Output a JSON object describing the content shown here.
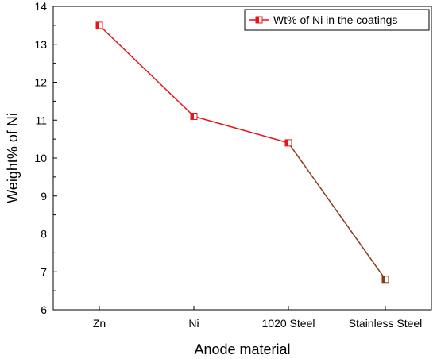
{
  "chart_data": {
    "type": "line",
    "title": "",
    "xlabel": "Anode material",
    "ylabel": "Weight% of Ni",
    "categories": [
      "Zn",
      "Ni",
      "1020 Steel",
      "Stainless Steel"
    ],
    "series": [
      {
        "name": "Wt% of Ni in the coatings",
        "values": [
          13.5,
          11.1,
          10.4,
          6.8
        ],
        "color": "#e8141a"
      }
    ],
    "ylim": [
      6,
      14
    ],
    "yticks": [
      6,
      7,
      8,
      9,
      10,
      11,
      12,
      13,
      14
    ],
    "grid": false,
    "legend_position": "top-right",
    "last_segment_color": "#8b3a1a"
  }
}
